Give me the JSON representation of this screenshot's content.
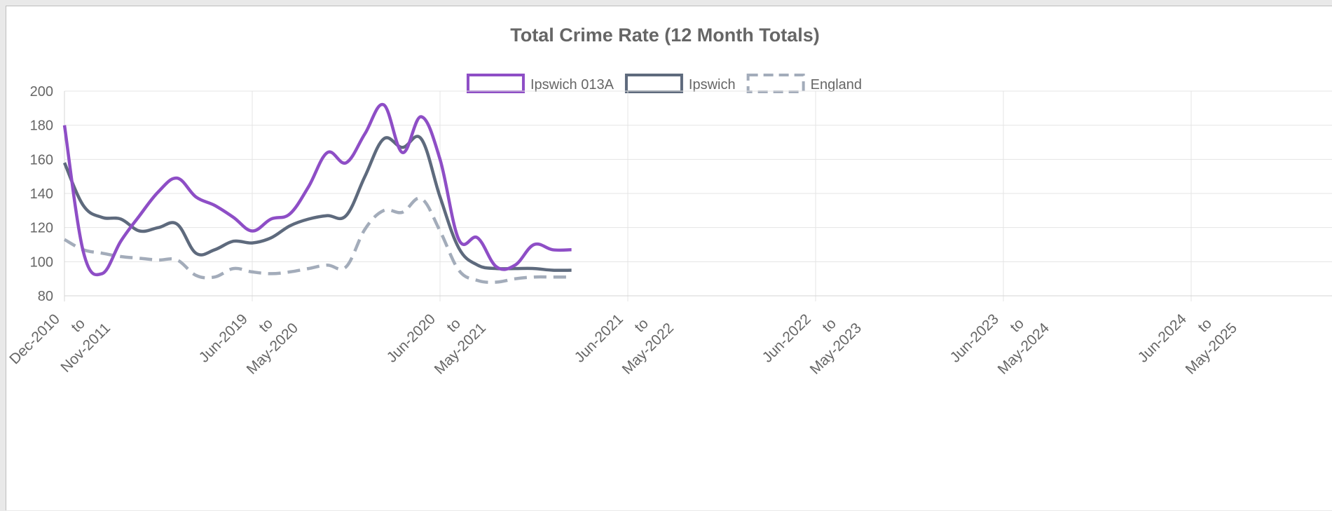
{
  "chart_data": {
    "type": "line",
    "title": "Total Crime Rate (12 Month Totals)",
    "xlabel": "",
    "ylabel": "",
    "ylim": [
      80,
      200
    ],
    "yticks": [
      80,
      100,
      120,
      140,
      160,
      180,
      200
    ],
    "grid": true,
    "legend_position": "top-center",
    "x_tick_labels": [
      [
        "Dec-2010",
        "to",
        "Nov-2011"
      ],
      [
        "Jun-2019",
        "to",
        "May-2020"
      ],
      [
        "Jun-2020",
        "to",
        "May-2021"
      ],
      [
        "Jun-2021",
        "to",
        "May-2022"
      ],
      [
        "Jun-2022",
        "to",
        "May-2023"
      ],
      [
        "Jun-2023",
        "to",
        "May-2024"
      ],
      [
        "Jun-2024",
        "to",
        "May-2025"
      ]
    ],
    "series": [
      {
        "name": "Ipswich 013A",
        "color": "#8e4ec6",
        "dashed": false,
        "values": [
          180,
          106,
          93,
          112,
          127,
          141,
          149,
          138,
          133,
          126,
          118,
          125,
          128,
          144,
          164,
          158,
          175,
          192,
          164,
          185,
          160,
          113,
          114,
          97,
          98,
          110,
          107,
          107
        ]
      },
      {
        "name": "Ipswich",
        "color": "#5e6a7d",
        "dashed": false,
        "values": [
          158,
          133,
          126,
          125,
          118,
          120,
          122,
          105,
          107,
          112,
          111,
          114,
          121,
          125,
          127,
          127,
          150,
          172,
          167,
          172,
          138,
          108,
          98,
          96,
          96,
          96,
          95,
          95
        ]
      },
      {
        "name": "England",
        "color": "#a3acba",
        "dashed": true,
        "values": [
          113,
          107,
          105,
          103,
          102,
          101,
          101,
          92,
          91,
          96,
          94,
          93,
          94,
          96,
          98,
          97,
          119,
          130,
          129,
          137,
          118,
          95,
          89,
          88,
          90,
          91,
          91,
          91
        ]
      }
    ]
  }
}
